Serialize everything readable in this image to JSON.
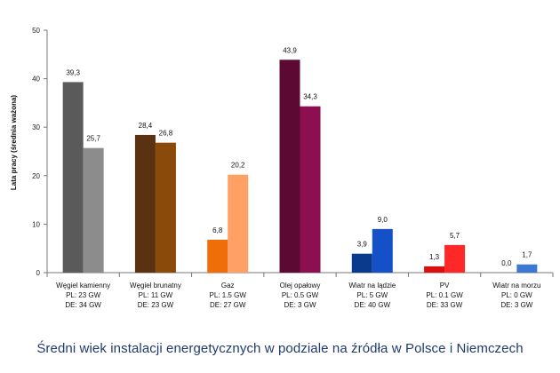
{
  "chart_data": {
    "type": "bar",
    "title": "Średni wiek instalacji energetycznych w podziale na źródła w Polsce i Niemczech",
    "xlabel": "",
    "ylabel": "Lata pracy (średnia ważona)",
    "ylim": [
      0,
      50
    ],
    "yticks": [
      0,
      10,
      20,
      30,
      40,
      50
    ],
    "grid": false,
    "legend": "none",
    "categories": [
      {
        "lines": [
          "Węgiel kamienny",
          "PL: 23 GW",
          "DE: 34 GW"
        ]
      },
      {
        "lines": [
          "Węgiel brunatny",
          "PL: 11 GW",
          "DE: 23 GW"
        ]
      },
      {
        "lines": [
          "Gaz",
          "PL: 1.5 GW",
          "DE: 27 GW"
        ]
      },
      {
        "lines": [
          "Olej opałowy",
          "PL: 0.5 GW",
          "DE: 3 GW"
        ]
      },
      {
        "lines": [
          "Wiatr na lądzie",
          "PL: 5 GW",
          "DE: 40 GW"
        ]
      },
      {
        "lines": [
          "PV",
          "PL: 0.1 GW",
          "DE: 33 GW"
        ]
      },
      {
        "lines": [
          "Wiatr na morzu",
          "PL: 0 GW",
          "DE: 3 GW"
        ]
      }
    ],
    "series": [
      {
        "values": [
          39.3,
          28.4,
          6.8,
          43.9,
          3.9,
          1.3,
          0.0
        ],
        "labels": [
          "39,3",
          "28,4",
          "6,8",
          "43,9",
          "3,9",
          "1,3",
          "0,0"
        ],
        "colors": [
          "#5a5a5a",
          "#5a3211",
          "#f06e0a",
          "#5c0a33",
          "#0a3a8c",
          "#dc0f0f",
          "#1e50b4"
        ]
      },
      {
        "values": [
          25.7,
          26.8,
          20.2,
          34.3,
          9.0,
          5.7,
          1.7
        ],
        "labels": [
          "25,7",
          "26,8",
          "20,2",
          "34,3",
          "9,0",
          "5,7",
          "1,7"
        ],
        "colors": [
          "#8c8c8c",
          "#8a4a0a",
          "#ffa064",
          "#8c0f50",
          "#1450c8",
          "#ff2828",
          "#3c78d2"
        ]
      }
    ]
  }
}
